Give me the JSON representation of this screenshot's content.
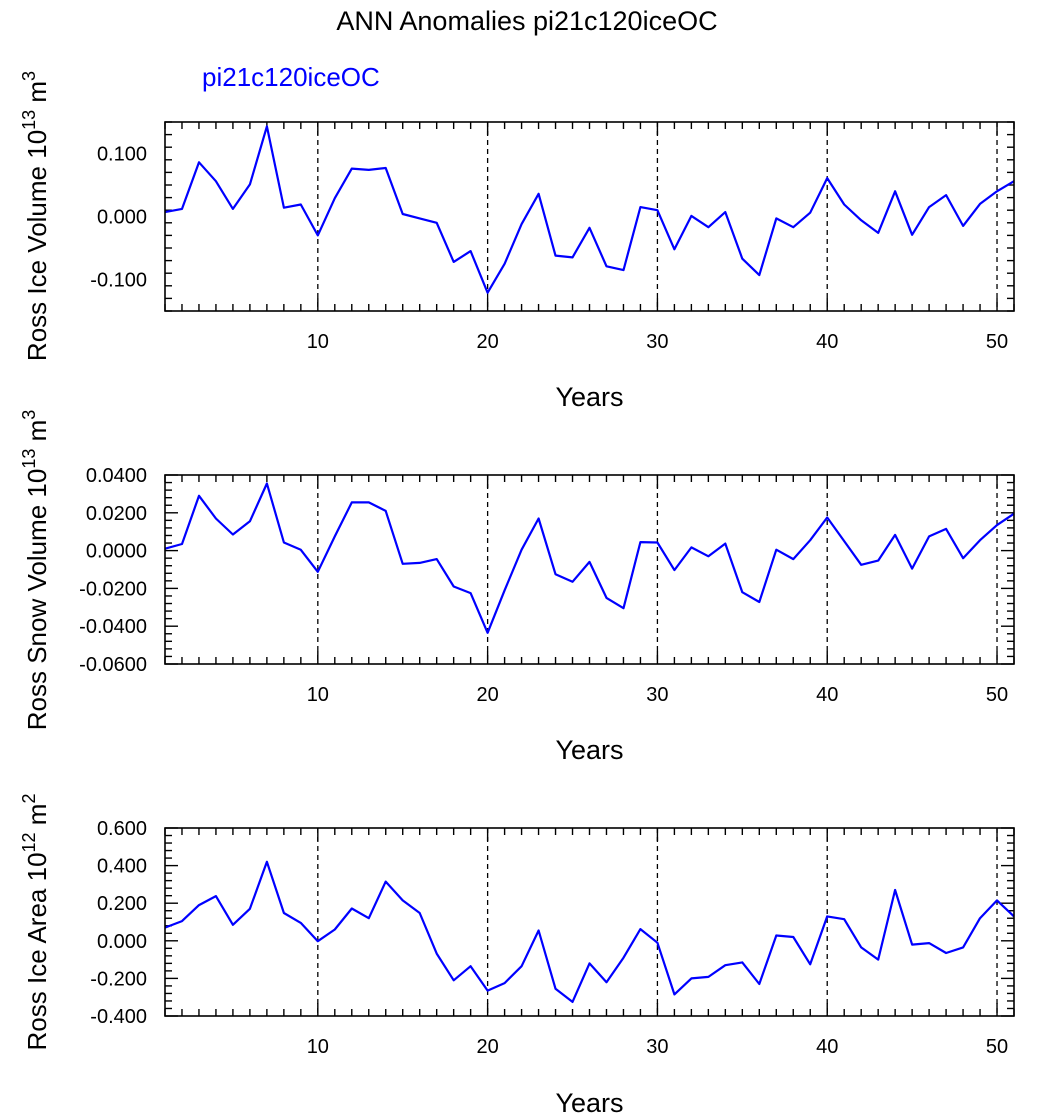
{
  "title": "ANN Anomalies pi21c120iceOC",
  "legend_label": "pi21c120iceOC",
  "colors": {
    "series": "#0000ff",
    "axis": "#000000"
  },
  "chart_data": [
    {
      "type": "line",
      "ylabel": "Ross Ice Volume 10",
      "ylabel_exp": "13",
      "ylabel_unit": " m",
      "ylabel_unit_exp": "3",
      "xlabel": "Years",
      "xlim": [
        1,
        51
      ],
      "ylim": [
        -0.15,
        0.15
      ],
      "yticks": [
        -0.1,
        0.0,
        0.1
      ],
      "ytick_labels": [
        "-0.100",
        "0.000",
        "0.100"
      ],
      "xticks": [
        10,
        20,
        30,
        40,
        50
      ],
      "xtick_labels": [
        "10",
        "20",
        "30",
        "40",
        "50"
      ],
      "grid_x": [
        10,
        20,
        30,
        40,
        50
      ],
      "series": [
        {
          "name": "pi21c120iceOC",
          "x": [
            1,
            2,
            3,
            4,
            5,
            6,
            7,
            8,
            9,
            10,
            11,
            12,
            13,
            14,
            15,
            16,
            17,
            18,
            19,
            20,
            21,
            22,
            23,
            24,
            25,
            26,
            27,
            28,
            29,
            30,
            31,
            32,
            33,
            34,
            35,
            36,
            37,
            38,
            39,
            40,
            41,
            42,
            43,
            44,
            45,
            46,
            47,
            48,
            49,
            50,
            51
          ],
          "values": [
            0.007,
            0.012,
            0.086,
            0.056,
            0.012,
            0.051,
            0.143,
            0.014,
            0.019,
            -0.03,
            0.029,
            0.076,
            0.074,
            0.077,
            0.004,
            -0.003,
            -0.01,
            -0.072,
            -0.055,
            -0.121,
            -0.075,
            -0.012,
            0.036,
            -0.062,
            -0.065,
            -0.018,
            -0.079,
            -0.085,
            0.015,
            0.01,
            -0.052,
            0.001,
            -0.017,
            0.007,
            -0.067,
            -0.093,
            -0.003,
            -0.017,
            0.006,
            0.061,
            0.019,
            -0.006,
            -0.026,
            0.04,
            -0.029,
            0.015,
            0.034,
            -0.015,
            0.02,
            0.04,
            0.056
          ]
        }
      ]
    },
    {
      "type": "line",
      "ylabel": "Ross Snow Volume 10",
      "ylabel_exp": "13",
      "ylabel_unit": " m",
      "ylabel_unit_exp": "3",
      "xlabel": "Years",
      "xlim": [
        1,
        51
      ],
      "ylim": [
        -0.06,
        0.04
      ],
      "yticks": [
        -0.06,
        -0.04,
        -0.02,
        0.0,
        0.02,
        0.04
      ],
      "ytick_labels": [
        "-0.0600",
        "-0.0400",
        "-0.0200",
        "0.0000",
        "0.0200",
        "0.0400"
      ],
      "xticks": [
        10,
        20,
        30,
        40,
        50
      ],
      "xtick_labels": [
        "10",
        "20",
        "30",
        "40",
        "50"
      ],
      "grid_x": [
        10,
        20,
        30,
        40,
        50
      ],
      "series": [
        {
          "name": "pi21c120iceOC",
          "x": [
            1,
            2,
            3,
            4,
            5,
            6,
            7,
            8,
            9,
            10,
            11,
            12,
            13,
            14,
            15,
            16,
            17,
            18,
            19,
            20,
            21,
            22,
            23,
            24,
            25,
            26,
            27,
            28,
            29,
            30,
            31,
            32,
            33,
            34,
            35,
            36,
            37,
            38,
            39,
            40,
            41,
            42,
            43,
            44,
            45,
            46,
            47,
            48,
            49,
            50,
            51
          ],
          "values": [
            0.001,
            0.0035,
            0.029,
            0.017,
            0.0085,
            0.0155,
            0.0355,
            0.0043,
            0.0004,
            -0.0112,
            0.0075,
            0.0255,
            0.0255,
            0.021,
            -0.007,
            -0.0065,
            -0.0045,
            -0.019,
            -0.0225,
            -0.0435,
            -0.021,
            0.0005,
            0.017,
            -0.0125,
            -0.0165,
            -0.006,
            -0.025,
            -0.0305,
            0.0045,
            0.0043,
            -0.0103,
            0.0017,
            -0.003,
            0.0037,
            -0.022,
            -0.0272,
            0.0005,
            -0.0045,
            0.0055,
            0.0175,
            0.005,
            -0.0075,
            -0.0053,
            0.0083,
            -0.0095,
            0.0075,
            0.0115,
            -0.004,
            0.0055,
            0.0135,
            0.0195
          ]
        }
      ]
    },
    {
      "type": "line",
      "ylabel": "Ross Ice Area 10",
      "ylabel_exp": "12",
      "ylabel_unit": " m",
      "ylabel_unit_exp": "2",
      "xlabel": "Years",
      "xlim": [
        1,
        51
      ],
      "ylim": [
        -0.4,
        0.6
      ],
      "yticks": [
        -0.4,
        -0.2,
        0.0,
        0.2,
        0.4,
        0.6
      ],
      "ytick_labels": [
        "-0.400",
        "-0.200",
        "0.000",
        "0.200",
        "0.400",
        "0.600"
      ],
      "xticks": [
        10,
        20,
        30,
        40,
        50
      ],
      "xtick_labels": [
        "10",
        "20",
        "30",
        "40",
        "50"
      ],
      "grid_x": [
        10,
        20,
        30,
        40,
        50
      ],
      "series": [
        {
          "name": "pi21c120iceOC",
          "x": [
            1,
            2,
            3,
            4,
            5,
            6,
            7,
            8,
            9,
            10,
            11,
            12,
            13,
            14,
            15,
            16,
            17,
            18,
            19,
            20,
            21,
            22,
            23,
            24,
            25,
            26,
            27,
            28,
            29,
            30,
            31,
            32,
            33,
            34,
            35,
            36,
            37,
            38,
            39,
            40,
            41,
            42,
            43,
            44,
            45,
            46,
            47,
            48,
            49,
            50,
            51
          ],
          "values": [
            0.07,
            0.105,
            0.19,
            0.238,
            0.085,
            0.17,
            0.42,
            0.148,
            0.095,
            -0.002,
            0.06,
            0.172,
            0.12,
            0.315,
            0.215,
            0.148,
            -0.068,
            -0.21,
            -0.135,
            -0.265,
            -0.225,
            -0.135,
            0.055,
            -0.255,
            -0.325,
            -0.12,
            -0.22,
            -0.09,
            0.062,
            -0.01,
            -0.285,
            -0.2,
            -0.192,
            -0.13,
            -0.115,
            -0.23,
            0.028,
            0.02,
            -0.125,
            0.13,
            0.115,
            -0.035,
            -0.1,
            0.27,
            -0.02,
            -0.012,
            -0.065,
            -0.035,
            0.12,
            0.215,
            0.13
          ]
        }
      ]
    }
  ]
}
